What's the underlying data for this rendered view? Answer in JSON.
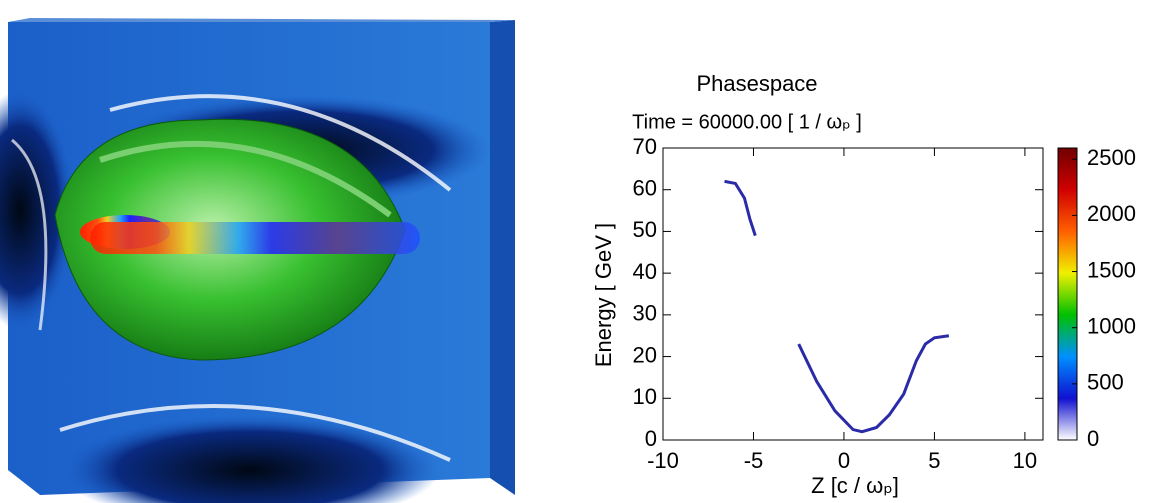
{
  "chart_data": {
    "type": "line",
    "title": "Phasespace",
    "subtitle": "Time = 60000.00 [ 1 / ωₚ ]",
    "x_label": "Z  [c / ωₚ]",
    "y_label": "Energy  [ GeV ]",
    "xlim": [
      -10,
      11
    ],
    "xticks": [
      -10,
      -5,
      0,
      5,
      10
    ],
    "ylim": [
      0,
      70
    ],
    "yticks": [
      0,
      10,
      20,
      30,
      40,
      50,
      60,
      70
    ],
    "series": [
      {
        "color": "#2b2ba8",
        "x": [
          -6.6,
          -6.0,
          -5.5,
          -5.2,
          -4.9,
          null,
          -2.5,
          -1.5,
          -0.5,
          0.5,
          1.0,
          1.8,
          2.5,
          3.3,
          4.0,
          4.5,
          5.0,
          5.8
        ],
        "values": [
          62,
          61.5,
          58,
          53,
          49,
          null,
          23,
          14,
          7,
          2.5,
          2,
          3,
          6,
          11,
          19,
          23,
          24.5,
          25
        ]
      }
    ],
    "colorbar": {
      "clim": [
        0,
        2600
      ],
      "ticks": [
        0,
        500,
        1000,
        1500,
        2000,
        2500
      ],
      "colors": [
        "#ffffff",
        "#1010d0",
        "#0090ff",
        "#00c000",
        "#f0f000",
        "#ff6000",
        "#d00000",
        "#700000"
      ]
    }
  }
}
